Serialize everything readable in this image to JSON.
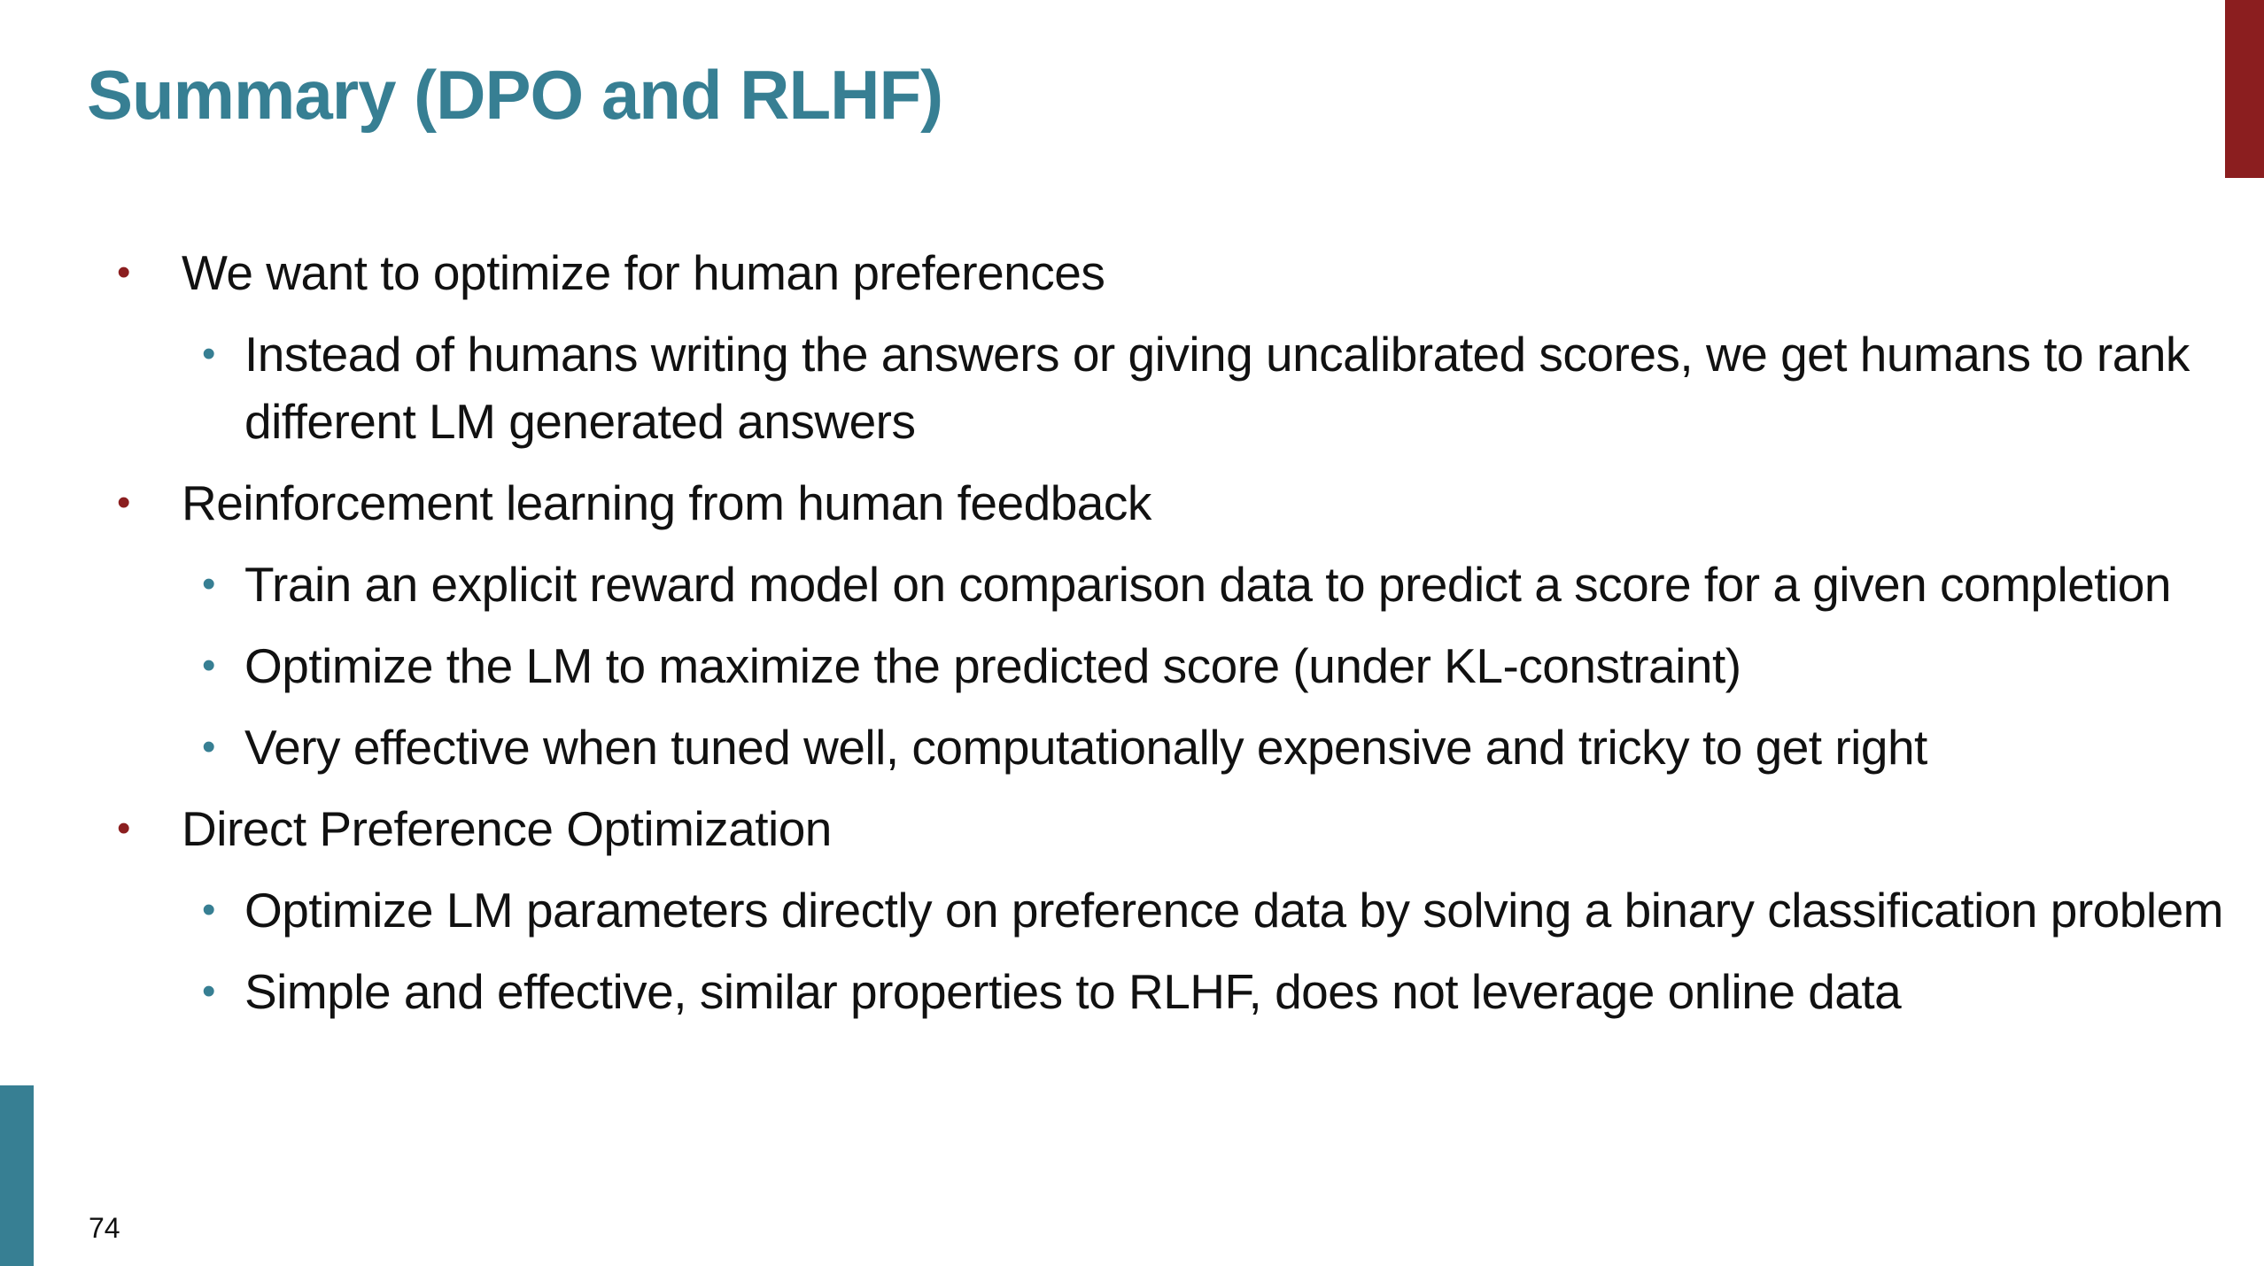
{
  "slide": {
    "title": "Summary (DPO and RLHF)",
    "number": "74",
    "colors": {
      "title": "#377f93",
      "primary_bullet": "#8b1e1f",
      "secondary_bullet": "#377f93",
      "top_accent": "#8b1e1f",
      "bottom_accent": "#377f93"
    }
  },
  "bullets": [
    {
      "text": "We want to optimize for human preferences",
      "subitems": [
        "Instead of humans writing the answers or giving uncalibrated scores, we get humans to rank different LM generated answers"
      ]
    },
    {
      "text": "Reinforcement learning from human feedback",
      "subitems": [
        "Train an explicit reward model on comparison data to predict a score for a given completion",
        "Optimize the LM to maximize the predicted score (under KL-constraint)",
        "Very effective when tuned well, computationally expensive and tricky to get right"
      ]
    },
    {
      "text": "Direct Preference Optimization",
      "subitems": [
        "Optimize LM parameters directly on preference data by solving a binary classification problem",
        "Simple and effective, similar properties to RLHF, does not leverage online data"
      ]
    }
  ]
}
